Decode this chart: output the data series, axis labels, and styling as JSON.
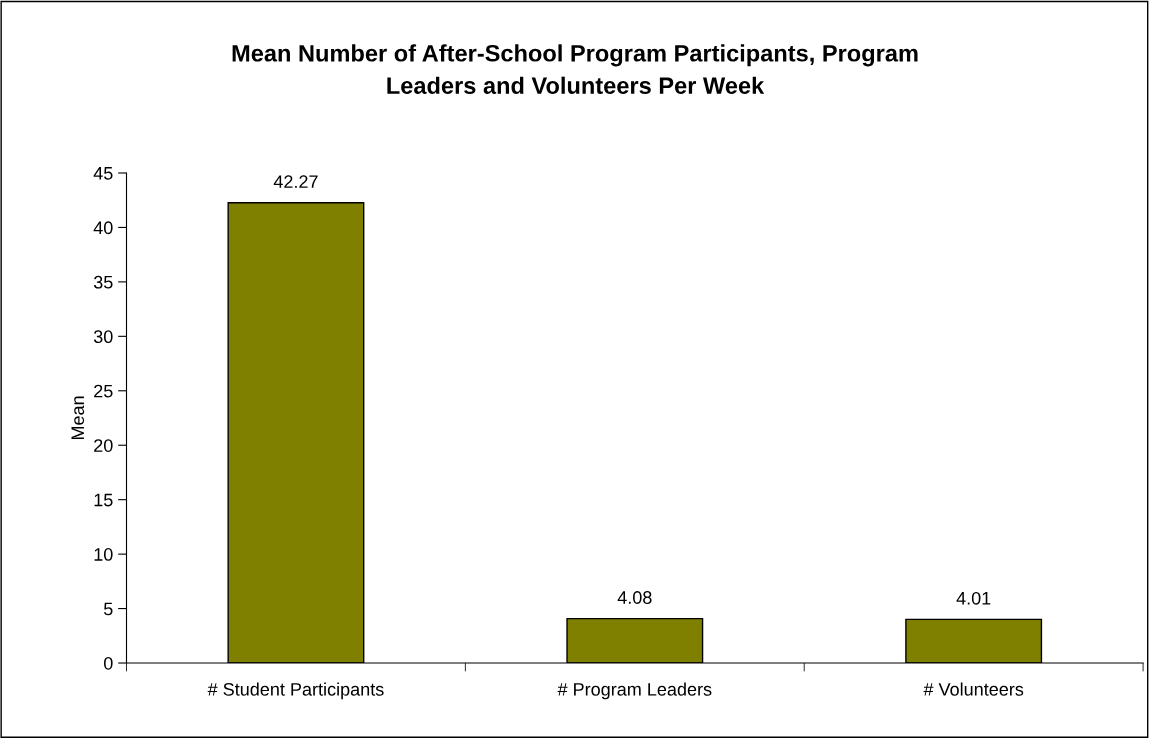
{
  "chart_data": {
    "type": "bar",
    "title": "Mean Number of After-School Program Participants, Program\nLeaders and Volunteers Per Week",
    "ylabel": "Mean",
    "categories": [
      "# Student Participants",
      "# Program Leaders",
      "# Volunteers"
    ],
    "values": [
      42.27,
      4.08,
      4.01
    ],
    "color": "#808000",
    "ylim": [
      0,
      45
    ],
    "yticks": [
      0,
      5,
      10,
      15,
      20,
      25,
      30,
      35,
      40,
      45
    ],
    "grid": false,
    "data_labels": true
  }
}
